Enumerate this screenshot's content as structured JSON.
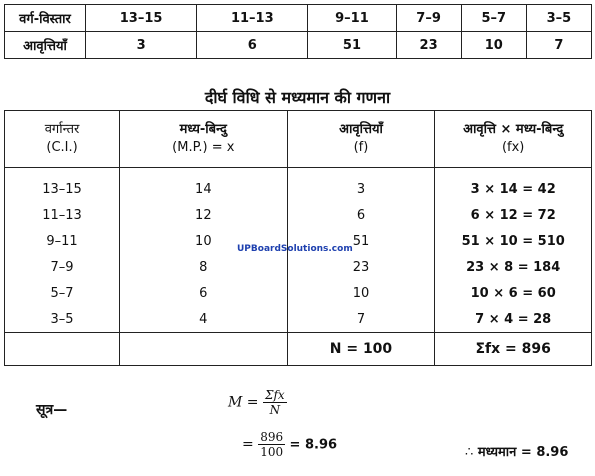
{
  "top_table": {
    "row1_header": "वर्ग-विस्तार",
    "row2_header": "आवृत्तियाँ",
    "intervals": [
      "13–15",
      "11–13",
      "9–11",
      "7–9",
      "5–7",
      "3–5"
    ],
    "frequencies": [
      "3",
      "6",
      "51",
      "23",
      "10",
      "7"
    ]
  },
  "heading": "दीर्घ विधि से मध्यमान की गणना",
  "main_table": {
    "headers": [
      {
        "line1": "वर्गान्तर",
        "line2": "(C.I.)"
      },
      {
        "line1": "मध्य-बिन्दु",
        "line2": "(M.P.) = x"
      },
      {
        "line1": "आवृत्तियाँ",
        "line2": "(f)"
      },
      {
        "line1": "आवृत्ति × मध्य-बिन्दु",
        "line2": "(fx)"
      }
    ],
    "rows": [
      [
        "13–15",
        "14",
        "3",
        "3 × 14 = 42"
      ],
      [
        "11–13",
        "12",
        "6",
        "6 × 12 = 72"
      ],
      [
        "9–11",
        "10",
        "51",
        "51 × 10 = 510"
      ],
      [
        "7–9",
        "8",
        "23",
        "23 × 8 = 184"
      ],
      [
        "5–7",
        "6",
        "10",
        "10 × 6 = 60"
      ],
      [
        "3–5",
        "4",
        "7",
        "7 × 4 = 28"
      ]
    ],
    "total_n": "N = 100",
    "total_fx": "Σfx = 896"
  },
  "watermark": "UPBoardSolutions.com",
  "formula": {
    "label": "सूत्र—",
    "lhs": "M =",
    "num1": "Σfx",
    "den1": "N",
    "eq": "=",
    "num2": "896",
    "den2": "100",
    "result": "= 8.96",
    "therefore": "∴",
    "final": "मध्यमान = 8.96"
  }
}
